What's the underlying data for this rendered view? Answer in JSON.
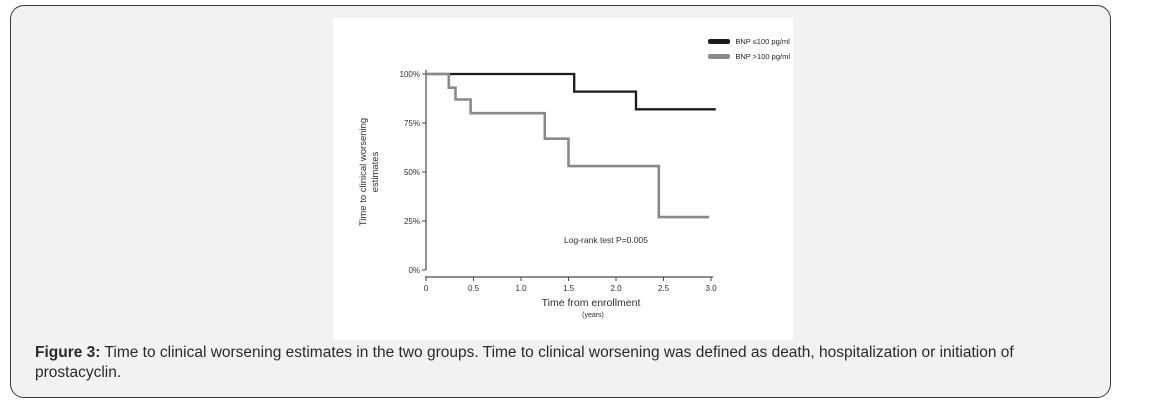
{
  "figure": {
    "caption_label": "Figure 3:",
    "caption_text": " Time to clinical worsening estimates in the two groups. Time to clinical worsening was defined as death, hospitalization or initiation of prostacyclin."
  },
  "chart_data": {
    "type": "line",
    "subtype": "kaplan-meier-step",
    "title": "",
    "xlabel": "Time from enrollment",
    "xlabel_unit": "(years)",
    "ylabel_lines": [
      "Time to clinical worsening",
      "estimates"
    ],
    "xlim": [
      0,
      3.0
    ],
    "ylim": [
      0,
      100
    ],
    "x_ticks": [
      0,
      0.5,
      1.0,
      1.5,
      2.0,
      2.5,
      3.0
    ],
    "x_tick_labels": [
      "0",
      "0.5",
      "1.0",
      "1.5",
      "2.0",
      "2.5",
      "3.0"
    ],
    "y_ticks": [
      100,
      75,
      50,
      25,
      0
    ],
    "y_tick_labels": [
      "100%",
      "75%",
      "50%",
      "25%",
      "0%"
    ],
    "grid": false,
    "legend_position": "top-right",
    "annotation": "Log-rank test P=0.005",
    "axis_color": "#4a4a4a",
    "text_color": "#2e2e2e",
    "series": [
      {
        "name": "BNP ≤100 pg/ml",
        "color": "#1c1c1c",
        "points": [
          [
            0,
            100
          ],
          [
            1.56,
            100
          ],
          [
            1.56,
            91
          ],
          [
            2.21,
            91
          ],
          [
            2.21,
            82
          ],
          [
            3.05,
            82
          ]
        ]
      },
      {
        "name": "BNP >100 pg/ml",
        "color": "#8a8a8a",
        "points": [
          [
            0,
            100
          ],
          [
            0.24,
            100
          ],
          [
            0.24,
            93
          ],
          [
            0.31,
            93
          ],
          [
            0.31,
            87
          ],
          [
            0.47,
            87
          ],
          [
            0.47,
            80
          ],
          [
            1.25,
            80
          ],
          [
            1.25,
            67
          ],
          [
            1.5,
            67
          ],
          [
            1.5,
            53
          ],
          [
            2.45,
            53
          ],
          [
            2.45,
            27
          ],
          [
            2.98,
            27
          ]
        ]
      }
    ]
  }
}
